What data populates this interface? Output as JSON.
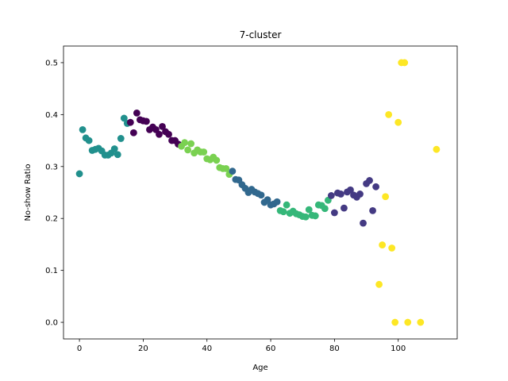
{
  "chart_data": {
    "type": "scatter",
    "title": "7-cluster",
    "xlabel": "Age",
    "ylabel": "No-show Ratio",
    "xlim": [
      -5,
      118.5
    ],
    "ylim": [
      -0.032,
      0.532
    ],
    "xticks": [
      0,
      20,
      40,
      60,
      80,
      100
    ],
    "yticks": [
      0.0,
      0.1,
      0.2,
      0.3,
      0.4,
      0.5
    ],
    "xtick_labels": [
      "0",
      "20",
      "40",
      "60",
      "80",
      "100"
    ],
    "ytick_labels": [
      "0.0",
      "0.1",
      "0.2",
      "0.3",
      "0.4",
      "0.5"
    ],
    "grid": false,
    "series": [
      {
        "name": "cluster-teal",
        "color": "#21908d",
        "points": [
          [
            0,
            0.286
          ],
          [
            1,
            0.371
          ],
          [
            2,
            0.355
          ],
          [
            3,
            0.35
          ],
          [
            4,
            0.331
          ],
          [
            5,
            0.333
          ],
          [
            6,
            0.335
          ],
          [
            7,
            0.33
          ],
          [
            8,
            0.322
          ],
          [
            9,
            0.322
          ],
          [
            10,
            0.326
          ],
          [
            11,
            0.334
          ],
          [
            12,
            0.323
          ],
          [
            13,
            0.354
          ],
          [
            14,
            0.393
          ],
          [
            15,
            0.383
          ]
        ]
      },
      {
        "name": "cluster-dark-purple",
        "color": "#440154",
        "points": [
          [
            16,
            0.385
          ],
          [
            17,
            0.365
          ],
          [
            18,
            0.403
          ],
          [
            19,
            0.39
          ],
          [
            20,
            0.388
          ],
          [
            21,
            0.387
          ],
          [
            22,
            0.371
          ],
          [
            23,
            0.376
          ],
          [
            24,
            0.371
          ],
          [
            25,
            0.362
          ],
          [
            26,
            0.377
          ],
          [
            27,
            0.367
          ],
          [
            28,
            0.362
          ],
          [
            29,
            0.35
          ],
          [
            30,
            0.35
          ],
          [
            31,
            0.343
          ]
        ]
      },
      {
        "name": "cluster-light-green",
        "color": "#7ad151",
        "points": [
          [
            32,
            0.339
          ],
          [
            33,
            0.346
          ],
          [
            34,
            0.332
          ],
          [
            35,
            0.344
          ],
          [
            36,
            0.326
          ],
          [
            37,
            0.332
          ],
          [
            38,
            0.328
          ],
          [
            39,
            0.328
          ],
          [
            40,
            0.315
          ],
          [
            41,
            0.313
          ],
          [
            42,
            0.318
          ],
          [
            43,
            0.312
          ],
          [
            44,
            0.298
          ],
          [
            45,
            0.296
          ],
          [
            46,
            0.296
          ],
          [
            47,
            0.285
          ]
        ]
      },
      {
        "name": "cluster-blue",
        "color": "#31688e",
        "points": [
          [
            48,
            0.291
          ],
          [
            49,
            0.275
          ],
          [
            50,
            0.274
          ],
          [
            51,
            0.265
          ],
          [
            52,
            0.258
          ],
          [
            53,
            0.25
          ],
          [
            54,
            0.256
          ],
          [
            55,
            0.251
          ],
          [
            56,
            0.248
          ],
          [
            57,
            0.245
          ],
          [
            58,
            0.231
          ],
          [
            59,
            0.236
          ],
          [
            60,
            0.226
          ],
          [
            61,
            0.228
          ],
          [
            62,
            0.232
          ]
        ]
      },
      {
        "name": "cluster-green",
        "color": "#35b779",
        "points": [
          [
            63,
            0.215
          ],
          [
            64,
            0.213
          ],
          [
            65,
            0.226
          ],
          [
            66,
            0.21
          ],
          [
            67,
            0.214
          ],
          [
            68,
            0.209
          ],
          [
            69,
            0.207
          ],
          [
            70,
            0.204
          ],
          [
            71,
            0.203
          ],
          [
            72,
            0.217
          ],
          [
            73,
            0.206
          ],
          [
            74,
            0.205
          ],
          [
            75,
            0.226
          ],
          [
            76,
            0.225
          ],
          [
            77,
            0.219
          ],
          [
            78,
            0.235
          ]
        ]
      },
      {
        "name": "cluster-indigo",
        "color": "#443a83",
        "points": [
          [
            79,
            0.244
          ],
          [
            80,
            0.211
          ],
          [
            81,
            0.249
          ],
          [
            82,
            0.247
          ],
          [
            83,
            0.22
          ],
          [
            84,
            0.251
          ],
          [
            85,
            0.255
          ],
          [
            86,
            0.245
          ],
          [
            87,
            0.241
          ],
          [
            88,
            0.247
          ],
          [
            89,
            0.191
          ],
          [
            90,
            0.267
          ],
          [
            91,
            0.273
          ],
          [
            92,
            0.215
          ],
          [
            93,
            0.261
          ]
        ]
      },
      {
        "name": "cluster-yellow",
        "color": "#fde725",
        "points": [
          [
            94,
            0.073
          ],
          [
            95,
            0.149
          ],
          [
            96,
            0.242
          ],
          [
            97,
            0.4
          ],
          [
            98,
            0.143
          ],
          [
            99,
            0.0
          ],
          [
            100,
            0.385
          ],
          [
            101,
            0.5
          ],
          [
            102,
            0.5
          ],
          [
            103,
            0.0
          ],
          [
            107,
            0.0
          ],
          [
            112,
            0.333
          ]
        ]
      }
    ]
  }
}
